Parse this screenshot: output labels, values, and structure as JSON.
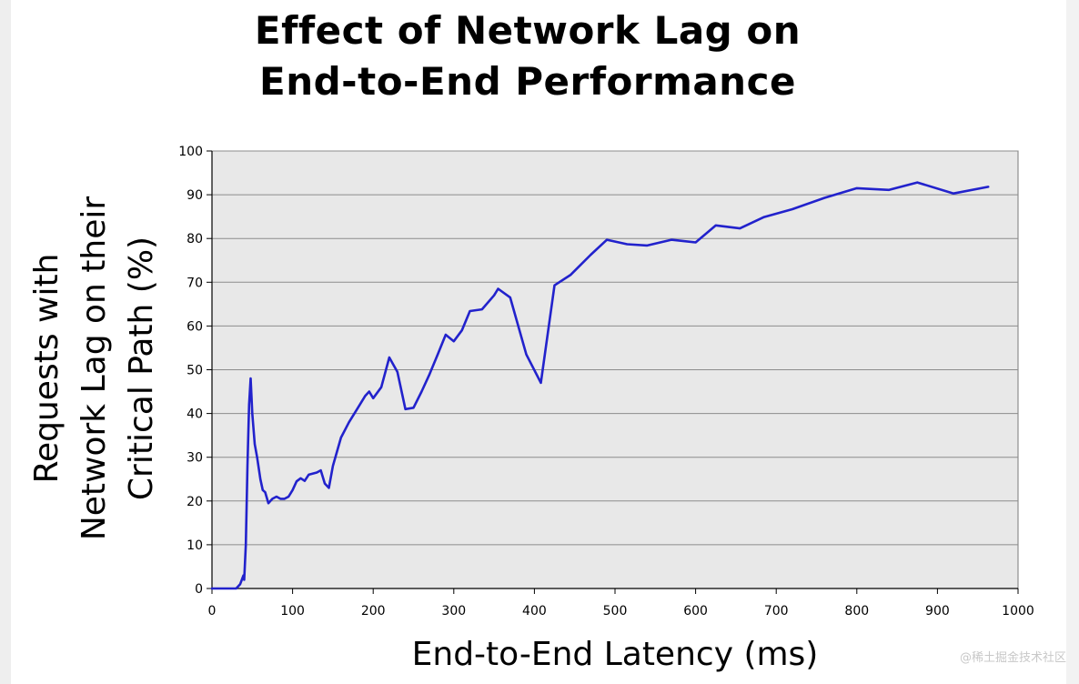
{
  "chart_data": {
    "type": "line",
    "title": [
      "Effect of Network Lag on",
      "End-to-End Performance"
    ],
    "xlabel": "End-to-End Latency (ms)",
    "ylabel": [
      "Requests with",
      "Network Lag on their",
      "Critical Path (%)"
    ],
    "xlim": [
      0,
      1000
    ],
    "ylim": [
      0,
      100
    ],
    "x_ticks": [
      0,
      100,
      200,
      300,
      400,
      500,
      600,
      700,
      800,
      900,
      1000
    ],
    "y_ticks": [
      0,
      10,
      20,
      30,
      40,
      50,
      60,
      70,
      80,
      90,
      100
    ],
    "grid": "horizontal",
    "legend": "none",
    "series": [
      {
        "color": "#2222cc",
        "x": [
          0,
          30,
          35,
          37,
          39,
          40,
          42,
          44,
          46,
          48,
          50,
          53,
          56,
          60,
          63,
          66,
          70,
          75,
          80,
          85,
          90,
          95,
          100,
          105,
          110,
          115,
          120,
          130,
          135,
          140,
          145,
          150,
          160,
          170,
          180,
          190,
          195,
          200,
          210,
          220,
          230,
          240,
          250,
          260,
          270,
          280,
          290,
          300,
          310,
          320,
          335,
          350,
          355,
          370,
          390,
          408,
          425,
          445,
          470,
          490,
          515,
          540,
          570,
          600,
          625,
          655,
          685,
          720,
          760,
          800,
          840,
          875,
          920,
          963
        ],
        "y": [
          0,
          0,
          1,
          2,
          3,
          2,
          10,
          28,
          42,
          48,
          40,
          33,
          30,
          25,
          22.5,
          22,
          19.5,
          20.5,
          21,
          20.5,
          20.5,
          21,
          22.5,
          24.5,
          25.2,
          24.6,
          26,
          26.5,
          27,
          24,
          23,
          28,
          34.5,
          38,
          41,
          44,
          45,
          43.5,
          46,
          52.8,
          49.5,
          41,
          41.3,
          45,
          49,
          53.5,
          58,
          56.5,
          59,
          63.4,
          63.8,
          67,
          68.5,
          66.5,
          53.5,
          47,
          69.3,
          71.7,
          76.3,
          79.7,
          78.7,
          78.4,
          79.7,
          79.1,
          83,
          82.3,
          84.9,
          86.7,
          89.3,
          91.5,
          91.1,
          92.8,
          90.3,
          91.8
        ]
      }
    ]
  },
  "watermark": "@稀土掘金技术社区"
}
